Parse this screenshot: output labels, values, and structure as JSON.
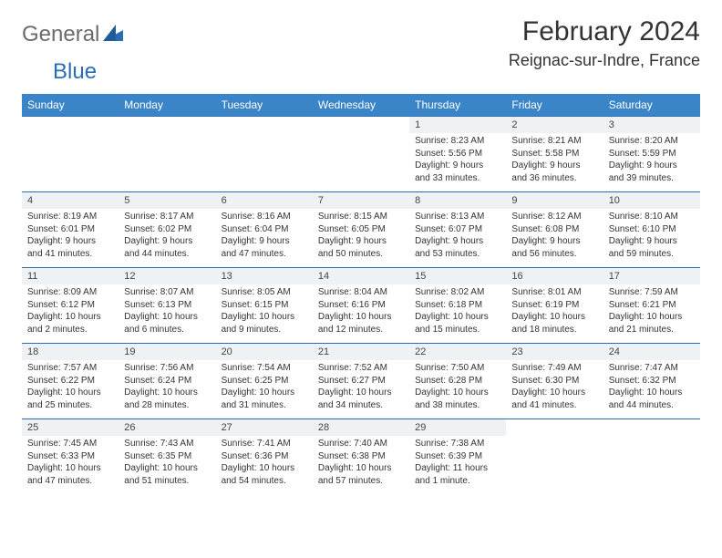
{
  "brand": {
    "general": "General",
    "blue": "Blue"
  },
  "title": "February 2024",
  "location": "Reignac-sur-Indre, France",
  "colors": {
    "header_bg": "#3a84c8",
    "header_text": "#ffffff",
    "daynum_bg": "#eef2f5",
    "border": "#2a6db5",
    "logo_gray": "#6b6b6b",
    "logo_blue": "#2a6db5",
    "body_text": "#333333",
    "background": "#ffffff"
  },
  "typography": {
    "title_fontsize": 30,
    "location_fontsize": 18,
    "logo_fontsize": 24,
    "dayheader_fontsize": 12,
    "daynum_fontsize": 11,
    "detail_fontsize": 10,
    "font_family": "Arial"
  },
  "day_headers": [
    "Sunday",
    "Monday",
    "Tuesday",
    "Wednesday",
    "Thursday",
    "Friday",
    "Saturday"
  ],
  "weeks": [
    [
      null,
      null,
      null,
      null,
      {
        "n": "1",
        "sunrise": "Sunrise: 8:23 AM",
        "sunset": "Sunset: 5:56 PM",
        "dl1": "Daylight: 9 hours",
        "dl2": "and 33 minutes."
      },
      {
        "n": "2",
        "sunrise": "Sunrise: 8:21 AM",
        "sunset": "Sunset: 5:58 PM",
        "dl1": "Daylight: 9 hours",
        "dl2": "and 36 minutes."
      },
      {
        "n": "3",
        "sunrise": "Sunrise: 8:20 AM",
        "sunset": "Sunset: 5:59 PM",
        "dl1": "Daylight: 9 hours",
        "dl2": "and 39 minutes."
      }
    ],
    [
      {
        "n": "4",
        "sunrise": "Sunrise: 8:19 AM",
        "sunset": "Sunset: 6:01 PM",
        "dl1": "Daylight: 9 hours",
        "dl2": "and 41 minutes."
      },
      {
        "n": "5",
        "sunrise": "Sunrise: 8:17 AM",
        "sunset": "Sunset: 6:02 PM",
        "dl1": "Daylight: 9 hours",
        "dl2": "and 44 minutes."
      },
      {
        "n": "6",
        "sunrise": "Sunrise: 8:16 AM",
        "sunset": "Sunset: 6:04 PM",
        "dl1": "Daylight: 9 hours",
        "dl2": "and 47 minutes."
      },
      {
        "n": "7",
        "sunrise": "Sunrise: 8:15 AM",
        "sunset": "Sunset: 6:05 PM",
        "dl1": "Daylight: 9 hours",
        "dl2": "and 50 minutes."
      },
      {
        "n": "8",
        "sunrise": "Sunrise: 8:13 AM",
        "sunset": "Sunset: 6:07 PM",
        "dl1": "Daylight: 9 hours",
        "dl2": "and 53 minutes."
      },
      {
        "n": "9",
        "sunrise": "Sunrise: 8:12 AM",
        "sunset": "Sunset: 6:08 PM",
        "dl1": "Daylight: 9 hours",
        "dl2": "and 56 minutes."
      },
      {
        "n": "10",
        "sunrise": "Sunrise: 8:10 AM",
        "sunset": "Sunset: 6:10 PM",
        "dl1": "Daylight: 9 hours",
        "dl2": "and 59 minutes."
      }
    ],
    [
      {
        "n": "11",
        "sunrise": "Sunrise: 8:09 AM",
        "sunset": "Sunset: 6:12 PM",
        "dl1": "Daylight: 10 hours",
        "dl2": "and 2 minutes."
      },
      {
        "n": "12",
        "sunrise": "Sunrise: 8:07 AM",
        "sunset": "Sunset: 6:13 PM",
        "dl1": "Daylight: 10 hours",
        "dl2": "and 6 minutes."
      },
      {
        "n": "13",
        "sunrise": "Sunrise: 8:05 AM",
        "sunset": "Sunset: 6:15 PM",
        "dl1": "Daylight: 10 hours",
        "dl2": "and 9 minutes."
      },
      {
        "n": "14",
        "sunrise": "Sunrise: 8:04 AM",
        "sunset": "Sunset: 6:16 PM",
        "dl1": "Daylight: 10 hours",
        "dl2": "and 12 minutes."
      },
      {
        "n": "15",
        "sunrise": "Sunrise: 8:02 AM",
        "sunset": "Sunset: 6:18 PM",
        "dl1": "Daylight: 10 hours",
        "dl2": "and 15 minutes."
      },
      {
        "n": "16",
        "sunrise": "Sunrise: 8:01 AM",
        "sunset": "Sunset: 6:19 PM",
        "dl1": "Daylight: 10 hours",
        "dl2": "and 18 minutes."
      },
      {
        "n": "17",
        "sunrise": "Sunrise: 7:59 AM",
        "sunset": "Sunset: 6:21 PM",
        "dl1": "Daylight: 10 hours",
        "dl2": "and 21 minutes."
      }
    ],
    [
      {
        "n": "18",
        "sunrise": "Sunrise: 7:57 AM",
        "sunset": "Sunset: 6:22 PM",
        "dl1": "Daylight: 10 hours",
        "dl2": "and 25 minutes."
      },
      {
        "n": "19",
        "sunrise": "Sunrise: 7:56 AM",
        "sunset": "Sunset: 6:24 PM",
        "dl1": "Daylight: 10 hours",
        "dl2": "and 28 minutes."
      },
      {
        "n": "20",
        "sunrise": "Sunrise: 7:54 AM",
        "sunset": "Sunset: 6:25 PM",
        "dl1": "Daylight: 10 hours",
        "dl2": "and 31 minutes."
      },
      {
        "n": "21",
        "sunrise": "Sunrise: 7:52 AM",
        "sunset": "Sunset: 6:27 PM",
        "dl1": "Daylight: 10 hours",
        "dl2": "and 34 minutes."
      },
      {
        "n": "22",
        "sunrise": "Sunrise: 7:50 AM",
        "sunset": "Sunset: 6:28 PM",
        "dl1": "Daylight: 10 hours",
        "dl2": "and 38 minutes."
      },
      {
        "n": "23",
        "sunrise": "Sunrise: 7:49 AM",
        "sunset": "Sunset: 6:30 PM",
        "dl1": "Daylight: 10 hours",
        "dl2": "and 41 minutes."
      },
      {
        "n": "24",
        "sunrise": "Sunrise: 7:47 AM",
        "sunset": "Sunset: 6:32 PM",
        "dl1": "Daylight: 10 hours",
        "dl2": "and 44 minutes."
      }
    ],
    [
      {
        "n": "25",
        "sunrise": "Sunrise: 7:45 AM",
        "sunset": "Sunset: 6:33 PM",
        "dl1": "Daylight: 10 hours",
        "dl2": "and 47 minutes."
      },
      {
        "n": "26",
        "sunrise": "Sunrise: 7:43 AM",
        "sunset": "Sunset: 6:35 PM",
        "dl1": "Daylight: 10 hours",
        "dl2": "and 51 minutes."
      },
      {
        "n": "27",
        "sunrise": "Sunrise: 7:41 AM",
        "sunset": "Sunset: 6:36 PM",
        "dl1": "Daylight: 10 hours",
        "dl2": "and 54 minutes."
      },
      {
        "n": "28",
        "sunrise": "Sunrise: 7:40 AM",
        "sunset": "Sunset: 6:38 PM",
        "dl1": "Daylight: 10 hours",
        "dl2": "and 57 minutes."
      },
      {
        "n": "29",
        "sunrise": "Sunrise: 7:38 AM",
        "sunset": "Sunset: 6:39 PM",
        "dl1": "Daylight: 11 hours",
        "dl2": "and 1 minute."
      },
      null,
      null
    ]
  ]
}
